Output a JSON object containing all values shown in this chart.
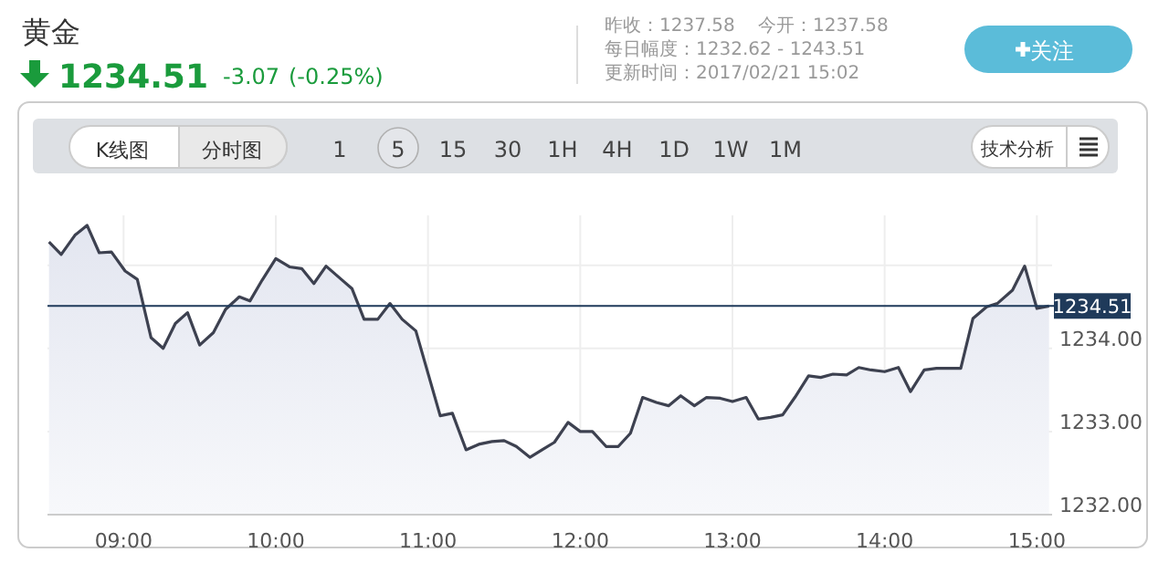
{
  "chart_data": {
    "type": "area",
    "title": "黄金",
    "annotations": [
      "1234.51",
      "-3.07",
      "(-0.25%)",
      "昨收：1237.58",
      "今开：1237.58",
      "每日幅度：1232.62 - 1243.51",
      "更新时间：2017/02/21 15:02",
      "关注",
      "K线图",
      "分时图",
      "1",
      "5",
      "15",
      "30",
      "1H",
      "4H",
      "1D",
      "1W",
      "1M",
      "技术分析"
    ],
    "x": [
      8.51,
      8.59,
      8.68,
      8.76,
      8.84,
      8.92,
      9.01,
      9.09,
      9.18,
      9.26,
      9.34,
      9.42,
      9.5,
      9.59,
      9.67,
      9.76,
      9.83,
      9.91,
      10.0,
      10.09,
      10.17,
      10.25,
      10.33,
      10.43,
      10.5,
      10.58,
      10.67,
      10.75,
      10.83,
      10.92,
      11.08,
      11.16,
      11.25,
      11.34,
      11.42,
      11.5,
      11.58,
      11.67,
      11.75,
      11.83,
      11.92,
      12.0,
      12.08,
      12.17,
      12.25,
      12.33,
      12.41,
      12.5,
      12.58,
      12.66,
      12.75,
      12.83,
      12.92,
      13.0,
      13.09,
      13.17,
      13.25,
      13.33,
      13.41,
      13.5,
      13.58,
      13.66,
      13.75,
      13.83,
      13.91,
      14.0,
      14.09,
      14.17,
      14.26,
      14.34,
      14.5,
      14.58,
      14.67,
      14.74,
      14.84,
      14.92,
      15.0,
      15.08
    ],
    "series": [
      {
        "color": "#3d4150",
        "values": [
          1235.28,
          1235.13,
          1235.36,
          1235.48,
          1235.15,
          1235.16,
          1234.93,
          1234.83,
          1234.13,
          1234.0,
          1234.3,
          1234.43,
          1234.04,
          1234.19,
          1234.47,
          1234.62,
          1234.57,
          1234.82,
          1235.08,
          1234.98,
          1234.96,
          1234.78,
          1234.99,
          1234.83,
          1234.72,
          1234.35,
          1234.35,
          1234.54,
          1234.35,
          1234.21,
          1233.19,
          1233.22,
          1232.78,
          1232.85,
          1232.88,
          1232.89,
          1232.82,
          1232.69,
          1232.78,
          1232.87,
          1233.11,
          1233.0,
          1233.0,
          1232.82,
          1232.82,
          1232.98,
          1233.41,
          1233.35,
          1233.31,
          1233.43,
          1233.31,
          1233.41,
          1233.4,
          1233.36,
          1233.41,
          1233.15,
          1233.17,
          1233.2,
          1233.41,
          1233.67,
          1233.65,
          1233.69,
          1233.68,
          1233.77,
          1233.74,
          1233.72,
          1233.77,
          1233.48,
          1233.74,
          1233.76,
          1233.76,
          1234.36,
          1234.5,
          1234.54,
          1234.7,
          1234.99,
          1234.48,
          1234.51
        ]
      }
    ],
    "xlim": [
      8.5,
      15.1
    ],
    "ylim": [
      1232,
      1235.6
    ],
    "xticks": [
      {
        "value": 9,
        "label": "09:00"
      },
      {
        "value": 10,
        "label": "10:00"
      },
      {
        "value": 11,
        "label": "11:00"
      },
      {
        "value": 12,
        "label": "12:00"
      },
      {
        "value": 13,
        "label": "13:00"
      },
      {
        "value": 14,
        "label": "14:00"
      },
      {
        "value": 15,
        "label": "15:00"
      }
    ],
    "yticks": [
      {
        "value": 1232,
        "label": "1232.00"
      },
      {
        "value": 1233,
        "label": "1233.00"
      },
      {
        "value": 1234,
        "label": "1234.00"
      },
      {
        "value": 1235,
        "label": null
      }
    ],
    "ref_lines": [
      {
        "axis": "y",
        "value": 1234.51,
        "label": "1234.51",
        "color": "#1f3a5a"
      }
    ],
    "grid": true
  }
}
